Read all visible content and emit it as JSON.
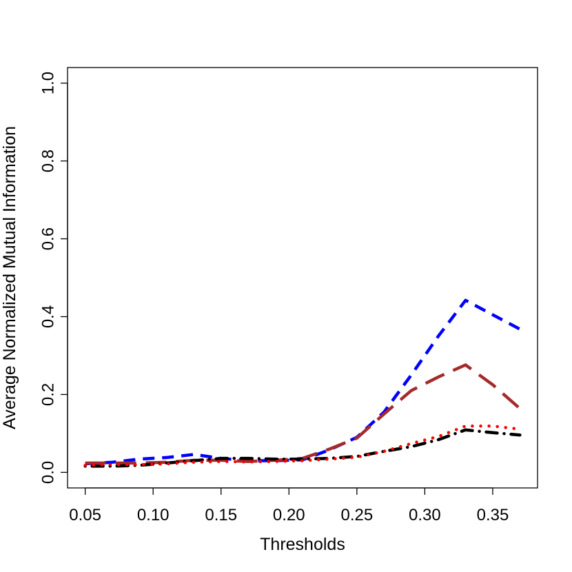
{
  "chart_data": {
    "type": "line",
    "xlabel": "Thresholds",
    "ylabel": "Average Normalized Mutual Information",
    "xlim": [
      0.037,
      0.383
    ],
    "ylim": [
      -0.04,
      1.04
    ],
    "xticks": [
      "0.05",
      "0.10",
      "0.15",
      "0.20",
      "0.25",
      "0.30",
      "0.35"
    ],
    "yticks": [
      "0.0",
      "0.2",
      "0.4",
      "0.6",
      "0.8",
      "1.0"
    ],
    "grid": false,
    "legend": "none",
    "x": [
      0.05,
      0.07,
      0.09,
      0.11,
      0.13,
      0.15,
      0.17,
      0.19,
      0.21,
      0.23,
      0.25,
      0.27,
      0.29,
      0.31,
      0.33,
      0.35,
      0.37
    ],
    "series": [
      {
        "color": "#0000ff",
        "dash": "short-dash",
        "values": [
          0.022,
          0.026,
          0.034,
          0.038,
          0.046,
          0.036,
          0.03,
          0.03,
          0.032,
          0.058,
          0.09,
          0.155,
          0.25,
          0.35,
          0.442,
          0.405,
          0.368
        ]
      },
      {
        "color": "#a52a2a",
        "dash": "long-dash",
        "values": [
          0.024,
          0.024,
          0.024,
          0.026,
          0.031,
          0.031,
          0.028,
          0.031,
          0.036,
          0.06,
          0.088,
          0.15,
          0.21,
          0.245,
          0.276,
          0.225,
          0.164
        ]
      },
      {
        "color": "#000000",
        "dash": "dot-dash",
        "values": [
          0.016,
          0.016,
          0.018,
          0.024,
          0.03,
          0.036,
          0.036,
          0.034,
          0.034,
          0.036,
          0.041,
          0.054,
          0.066,
          0.084,
          0.109,
          0.102,
          0.096
        ]
      },
      {
        "color": "#ff0000",
        "dash": "dotted",
        "values": [
          0.018,
          0.02,
          0.02,
          0.022,
          0.026,
          0.028,
          0.027,
          0.028,
          0.03,
          0.034,
          0.039,
          0.054,
          0.074,
          0.092,
          0.119,
          0.119,
          0.111
        ]
      }
    ]
  }
}
